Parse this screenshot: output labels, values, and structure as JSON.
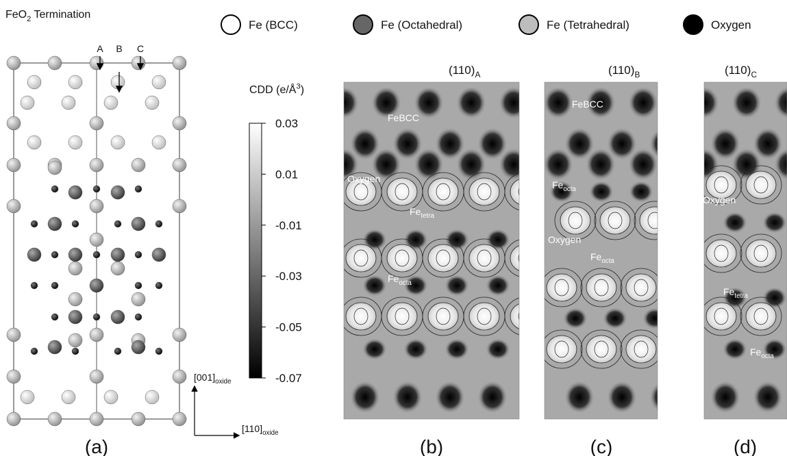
{
  "header": {
    "title": {
      "main": "FeO",
      "sub": "2",
      "rest": " Termination"
    }
  },
  "legend": [
    {
      "label": "Fe (BCC)"
    },
    {
      "label": "Fe (Octahedral)"
    },
    {
      "label": "Fe (Tetrahedral)"
    },
    {
      "label": "Oxygen"
    }
  ],
  "panel_a": {
    "arrows": [
      "A",
      "B",
      "C"
    ],
    "axis_vertical": {
      "main": "[001]",
      "sub": "oxide"
    },
    "axis_horizontal": {
      "main": "[110]",
      "sub": "oxide"
    },
    "label": "(a)"
  },
  "colorbar": {
    "label": {
      "main": "CDD (e/Å",
      "sup": "3",
      "rest": ")"
    },
    "lim": [
      -0.07,
      0.03
    ],
    "ticks": [
      0.03,
      0.01,
      -0.01,
      -0.03,
      -0.05,
      -0.07
    ]
  },
  "maps": [
    {
      "title": {
        "main": "(110)",
        "sub": "A"
      },
      "label": "(b)",
      "annotations": [
        {
          "text": "FeBCC"
        },
        {
          "text": "Oxygen"
        },
        {
          "text": "Fe",
          "sub": "tetra"
        },
        {
          "text": "Fe",
          "sub": "octa"
        }
      ]
    },
    {
      "title": {
        "main": "(110)",
        "sub": "B"
      },
      "label": "(c)",
      "annotations": [
        {
          "text": "FeBCC"
        },
        {
          "text": "Fe",
          "sub": "octa"
        },
        {
          "text": "Oxygen"
        },
        {
          "text": "Fe",
          "sub": "octa"
        }
      ]
    },
    {
      "title": {
        "main": "(110)",
        "sub": "C"
      },
      "label": "(d)",
      "annotations": [
        {
          "text": "Oxygen"
        },
        {
          "text": "Fe",
          "sub": "tetra"
        },
        {
          "text": "Fe",
          "sub": "octa"
        }
      ]
    }
  ]
}
